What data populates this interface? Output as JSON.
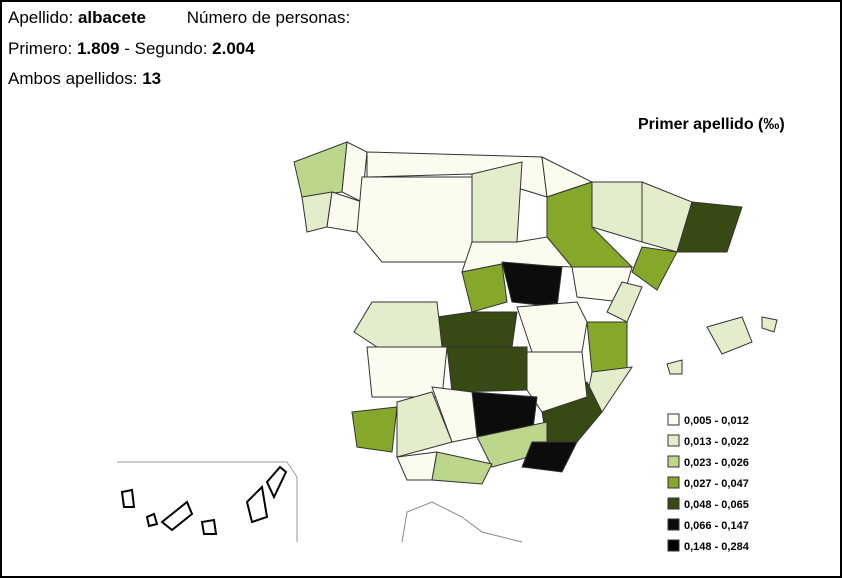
{
  "header": {
    "surname_label": "Apellido:",
    "surname": "albacete",
    "persons_label": "Número de personas:",
    "first_label": "Primero:",
    "first": "1.809",
    "second_label": "- Segundo:",
    "second": "2.004",
    "both_label": "Ambos apellidos:",
    "both": "13"
  },
  "map": {
    "title": "Primer apellido (‰)",
    "legend": [
      {
        "label": "0,005 - 0,012",
        "color": "#fbfbef"
      },
      {
        "label": "0,013 - 0,022",
        "color": "#e3edcc"
      },
      {
        "label": "0,023 - 0,026",
        "color": "#bcd68c"
      },
      {
        "label": "0,027 - 0,047",
        "color": "#86a82a"
      },
      {
        "label": "0,048 - 0,065",
        "color": "#374a14"
      },
      {
        "label": "0,066 - 0,147",
        "color": "#0c0c0c"
      },
      {
        "label": "0,148 - 0,284",
        "color": "#000000"
      }
    ]
  }
}
